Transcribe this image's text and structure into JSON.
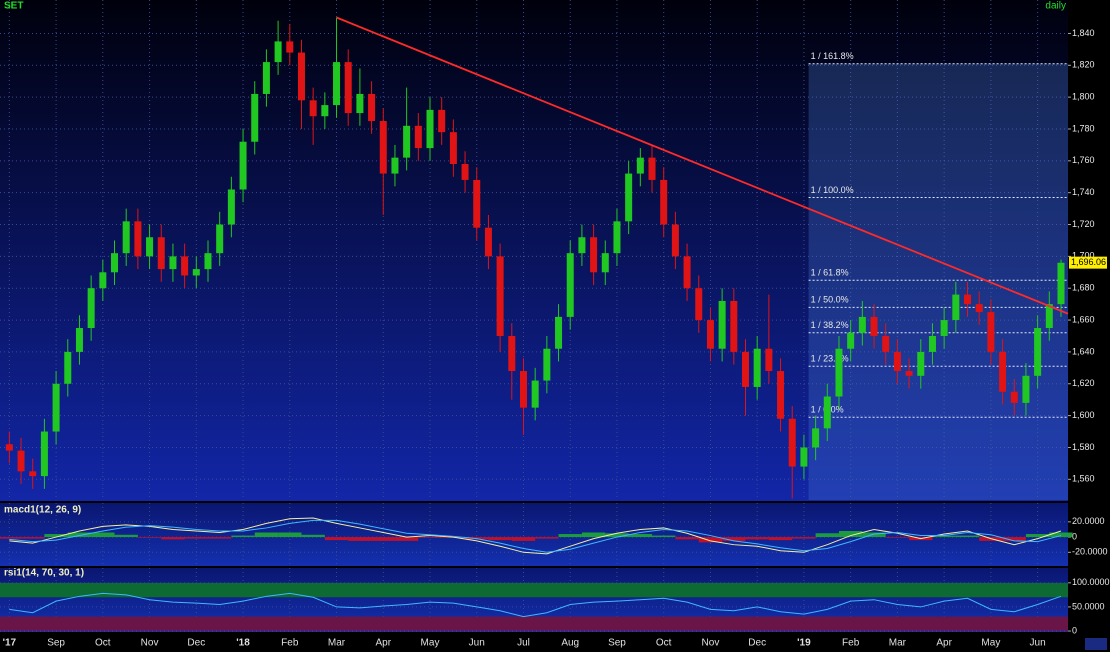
{
  "chart_data": [
    {
      "type": "candlestick",
      "title": "SET",
      "subtitle": "daily",
      "xlim": [
        -0.2,
        22.65
      ],
      "xticks": [
        {
          "value": 0,
          "label": "'17"
        },
        {
          "value": 1,
          "label": "Sep"
        },
        {
          "value": 2,
          "label": "Oct"
        },
        {
          "value": 3,
          "label": "Nov"
        },
        {
          "value": 4,
          "label": "Dec"
        },
        {
          "value": 5,
          "label": "'18"
        },
        {
          "value": 6,
          "label": "Feb"
        },
        {
          "value": 7,
          "label": "Mar"
        },
        {
          "value": 8,
          "label": "Apr"
        },
        {
          "value": 9,
          "label": "May"
        },
        {
          "value": 10,
          "label": "Jun"
        },
        {
          "value": 11,
          "label": "Jul"
        },
        {
          "value": 12,
          "label": "Aug"
        },
        {
          "value": 13,
          "label": "Sep"
        },
        {
          "value": 14,
          "label": "Oct"
        },
        {
          "value": 15,
          "label": "Nov"
        },
        {
          "value": 16,
          "label": "Dec"
        },
        {
          "value": 17,
          "label": "'19"
        },
        {
          "value": 18,
          "label": "Feb"
        },
        {
          "value": 19,
          "label": "Mar"
        },
        {
          "value": 20,
          "label": "Apr"
        },
        {
          "value": 21,
          "label": "May"
        },
        {
          "value": 22,
          "label": "Jun"
        }
      ],
      "ylim": [
        1547,
        1861
      ],
      "yticks": [
        {
          "value": 1560,
          "label": "1,560"
        },
        {
          "value": 1580,
          "label": "1,580"
        },
        {
          "value": 1600,
          "label": "1,600"
        },
        {
          "value": 1620,
          "label": "1,620"
        },
        {
          "value": 1640,
          "label": "1,640"
        },
        {
          "value": 1660,
          "label": "1,660"
        },
        {
          "value": 1680,
          "label": "1,680"
        },
        {
          "value": 1700,
          "label": "1,700"
        },
        {
          "value": 1720,
          "label": "1,720"
        },
        {
          "value": 1740,
          "label": "1,740"
        },
        {
          "value": 1760,
          "label": "1,760"
        },
        {
          "value": 1780,
          "label": "1,780"
        },
        {
          "value": 1800,
          "label": "1,800"
        },
        {
          "value": 1820,
          "label": "1,820"
        },
        {
          "value": 1840,
          "label": "1,840"
        }
      ],
      "grid": true,
      "up_color": "#22c822",
      "down_color": "#e01414",
      "x": [
        0,
        0.25,
        0.5,
        0.75,
        1,
        1.25,
        1.5,
        1.75,
        2,
        2.25,
        2.5,
        2.75,
        3,
        3.25,
        3.5,
        3.75,
        4,
        4.25,
        4.5,
        4.75,
        5,
        5.25,
        5.5,
        5.75,
        6,
        6.25,
        6.5,
        6.75,
        7,
        7.25,
        7.5,
        7.75,
        8,
        8.25,
        8.5,
        8.75,
        9,
        9.25,
        9.5,
        9.75,
        10,
        10.25,
        10.5,
        10.75,
        11,
        11.25,
        11.5,
        11.75,
        12,
        12.25,
        12.5,
        12.75,
        13,
        13.25,
        13.5,
        13.75,
        14,
        14.25,
        14.5,
        14.75,
        15,
        15.25,
        15.5,
        15.75,
        16,
        16.25,
        16.5,
        16.75,
        17,
        17.25,
        17.5,
        17.75,
        18,
        18.25,
        18.5,
        18.75,
        19,
        19.25,
        19.5,
        19.75,
        20,
        20.25,
        20.5,
        20.75,
        21,
        21.25,
        21.5,
        21.75,
        22,
        22.25,
        22.5
      ],
      "open": [
        1582,
        1578,
        1565,
        1562,
        1590,
        1620,
        1640,
        1655,
        1680,
        1690,
        1702,
        1722,
        1700,
        1712,
        1692,
        1700,
        1688,
        1692,
        1702,
        1720,
        1742,
        1772,
        1802,
        1822,
        1835,
        1828,
        1798,
        1788,
        1795,
        1822,
        1790,
        1802,
        1785,
        1752,
        1762,
        1782,
        1768,
        1792,
        1778,
        1758,
        1748,
        1718,
        1700,
        1650,
        1628,
        1605,
        1622,
        1642,
        1662,
        1702,
        1712,
        1690,
        1702,
        1722,
        1752,
        1762,
        1748,
        1720,
        1700,
        1680,
        1660,
        1642,
        1672,
        1640,
        1618,
        1642,
        1628,
        1598,
        1568,
        1580,
        1592,
        1612,
        1642,
        1652,
        1662,
        1650,
        1640,
        1628,
        1625,
        1640,
        1650,
        1660,
        1676,
        1670,
        1665,
        1640,
        1615,
        1608,
        1625,
        1655,
        1670
      ],
      "high": [
        1590,
        1586,
        1573,
        1598,
        1628,
        1648,
        1663,
        1688,
        1698,
        1710,
        1730,
        1730,
        1720,
        1720,
        1708,
        1708,
        1700,
        1710,
        1728,
        1750,
        1780,
        1810,
        1830,
        1848,
        1846,
        1836,
        1806,
        1803,
        1850,
        1830,
        1818,
        1810,
        1793,
        1770,
        1806,
        1790,
        1800,
        1800,
        1786,
        1766,
        1756,
        1726,
        1708,
        1658,
        1636,
        1630,
        1650,
        1670,
        1710,
        1720,
        1720,
        1710,
        1730,
        1760,
        1768,
        1770,
        1756,
        1728,
        1708,
        1688,
        1668,
        1680,
        1680,
        1648,
        1650,
        1676,
        1636,
        1606,
        1588,
        1600,
        1620,
        1650,
        1660,
        1672,
        1670,
        1658,
        1648,
        1636,
        1648,
        1658,
        1668,
        1684,
        1684,
        1678,
        1673,
        1648,
        1623,
        1633,
        1663,
        1678,
        1698
      ],
      "low": [
        1570,
        1557,
        1554,
        1554,
        1582,
        1612,
        1632,
        1647,
        1672,
        1682,
        1694,
        1692,
        1692,
        1684,
        1684,
        1680,
        1680,
        1684,
        1694,
        1712,
        1734,
        1764,
        1794,
        1814,
        1820,
        1780,
        1770,
        1780,
        1787,
        1782,
        1782,
        1777,
        1726,
        1744,
        1754,
        1760,
        1760,
        1770,
        1750,
        1740,
        1710,
        1692,
        1640,
        1610,
        1588,
        1597,
        1614,
        1634,
        1654,
        1694,
        1682,
        1682,
        1694,
        1714,
        1744,
        1740,
        1712,
        1692,
        1672,
        1652,
        1634,
        1634,
        1632,
        1600,
        1610,
        1620,
        1590,
        1548,
        1560,
        1572,
        1584,
        1604,
        1634,
        1644,
        1642,
        1632,
        1620,
        1617,
        1617,
        1632,
        1642,
        1652,
        1662,
        1657,
        1632,
        1607,
        1600,
        1600,
        1617,
        1647,
        1662
      ],
      "close": [
        1578,
        1565,
        1562,
        1590,
        1620,
        1640,
        1655,
        1680,
        1690,
        1702,
        1722,
        1700,
        1712,
        1692,
        1700,
        1688,
        1692,
        1702,
        1720,
        1742,
        1772,
        1802,
        1822,
        1835,
        1828,
        1798,
        1788,
        1795,
        1822,
        1790,
        1802,
        1785,
        1752,
        1762,
        1782,
        1768,
        1792,
        1778,
        1758,
        1748,
        1718,
        1700,
        1650,
        1628,
        1605,
        1622,
        1642,
        1662,
        1702,
        1712,
        1690,
        1702,
        1722,
        1752,
        1762,
        1748,
        1720,
        1700,
        1680,
        1660,
        1642,
        1672,
        1640,
        1618,
        1642,
        1628,
        1598,
        1568,
        1580,
        1592,
        1612,
        1642,
        1652,
        1662,
        1650,
        1640,
        1628,
        1625,
        1640,
        1650,
        1660,
        1676,
        1670,
        1665,
        1640,
        1615,
        1608,
        1625,
        1655,
        1670,
        1696
      ],
      "trendline": {
        "x": [
          7.0,
          22.65
        ],
        "y": [
          1850,
          1664
        ],
        "color": "#ff2a2a"
      },
      "fib_x": 17.1,
      "fib_levels": [
        {
          "label": "1 / 161.8%",
          "value": 1821
        },
        {
          "label": "1 / 100.0%",
          "value": 1737
        },
        {
          "label": "1 / 61.8%",
          "value": 1685
        },
        {
          "label": "1 / 50.0%",
          "value": 1668
        },
        {
          "label": "1 / 38.2%",
          "value": 1652
        },
        {
          "label": "1 / 23.6%",
          "value": 1631
        },
        {
          "label": "1 / 0.0%",
          "value": 1599
        }
      ],
      "last_price": {
        "value": 1696.06,
        "label": "1,696.06"
      }
    },
    {
      "type": "macd",
      "title": "macd1(12, 26, 9)",
      "ylim": [
        -38,
        29
      ],
      "yticks": [
        {
          "value": 20,
          "label": "20.0000"
        },
        0,
        {
          "value": -20,
          "label": "-20.0000"
        }
      ],
      "x": [
        0,
        0.5,
        1,
        1.5,
        2,
        2.5,
        3,
        3.5,
        4,
        4.5,
        5,
        5.5,
        6,
        6.5,
        7,
        7.5,
        8,
        8.5,
        9,
        9.5,
        10,
        10.5,
        11,
        11.5,
        12,
        12.5,
        13,
        13.5,
        14,
        14.5,
        15,
        15.5,
        16,
        16.5,
        17,
        17.5,
        18,
        18.5,
        19,
        19.5,
        20,
        20.5,
        21,
        21.5,
        22,
        22.5
      ],
      "lines": [
        {
          "color": "#f4f0a0",
          "values": [
            -5,
            -8,
            0,
            8,
            14,
            16,
            14,
            10,
            8,
            6,
            10,
            18,
            24,
            25,
            18,
            12,
            6,
            0,
            2,
            0,
            -5,
            -12,
            -20,
            -22,
            -12,
            -2,
            5,
            10,
            12,
            5,
            -5,
            -10,
            -12,
            -18,
            -20,
            -10,
            2,
            10,
            5,
            -2,
            4,
            8,
            -2,
            -10,
            -2,
            8
          ]
        },
        {
          "color": "#3fb8ff",
          "values": [
            -3,
            -6,
            -4,
            2,
            8,
            13,
            15,
            13,
            10,
            8,
            8,
            12,
            18,
            22,
            22,
            17,
            11,
            5,
            3,
            1,
            -2,
            -8,
            -15,
            -20,
            -16,
            -8,
            0,
            6,
            10,
            8,
            2,
            -5,
            -9,
            -14,
            -18,
            -15,
            -6,
            4,
            6,
            2,
            2,
            6,
            3,
            -5,
            -6,
            2
          ]
        }
      ],
      "histogram": {
        "up_color": "#1c9c3c",
        "down_color": "#c0102a",
        "values": [
          -2,
          -2,
          4,
          6,
          6,
          3,
          -1,
          -3,
          -2,
          -2,
          2,
          6,
          6,
          3,
          -4,
          -5,
          -5,
          -5,
          -1,
          -1,
          -3,
          -4,
          -5,
          -2,
          4,
          6,
          5,
          4,
          2,
          -3,
          -7,
          -5,
          -3,
          -4,
          -2,
          5,
          8,
          6,
          -1,
          -4,
          2,
          2,
          -5,
          -5,
          4,
          6
        ]
      }
    },
    {
      "type": "rsi",
      "title": "rsi1(14, 70, 30, 1)",
      "ylim": [
        -2,
        110
      ],
      "yticks": [
        {
          "value": 100,
          "label": "100.0000"
        },
        {
          "value": 50,
          "label": "50.0000"
        },
        0
      ],
      "zones": [
        {
          "from": 70,
          "to": 100,
          "color": "#0d6a33"
        },
        {
          "from": 0,
          "to": 30,
          "color": "#6a1548"
        }
      ],
      "x": [
        0,
        0.5,
        1,
        1.5,
        2,
        2.5,
        3,
        3.5,
        4,
        4.5,
        5,
        5.5,
        6,
        6.5,
        7,
        7.5,
        8,
        8.5,
        9,
        9.5,
        10,
        10.5,
        11,
        11.5,
        12,
        12.5,
        13,
        13.5,
        14,
        14.5,
        15,
        15.5,
        16,
        16.5,
        17,
        17.5,
        18,
        18.5,
        19,
        19.5,
        20,
        20.5,
        21,
        21.5,
        22,
        22.5
      ],
      "color": "#3fb8ff",
      "values": [
        45,
        38,
        62,
        72,
        78,
        75,
        65,
        60,
        58,
        55,
        62,
        72,
        78,
        70,
        50,
        48,
        52,
        55,
        60,
        58,
        50,
        42,
        30,
        38,
        55,
        60,
        62,
        65,
        68,
        60,
        45,
        42,
        50,
        40,
        35,
        45,
        62,
        65,
        55,
        50,
        62,
        68,
        45,
        40,
        55,
        72
      ]
    }
  ]
}
